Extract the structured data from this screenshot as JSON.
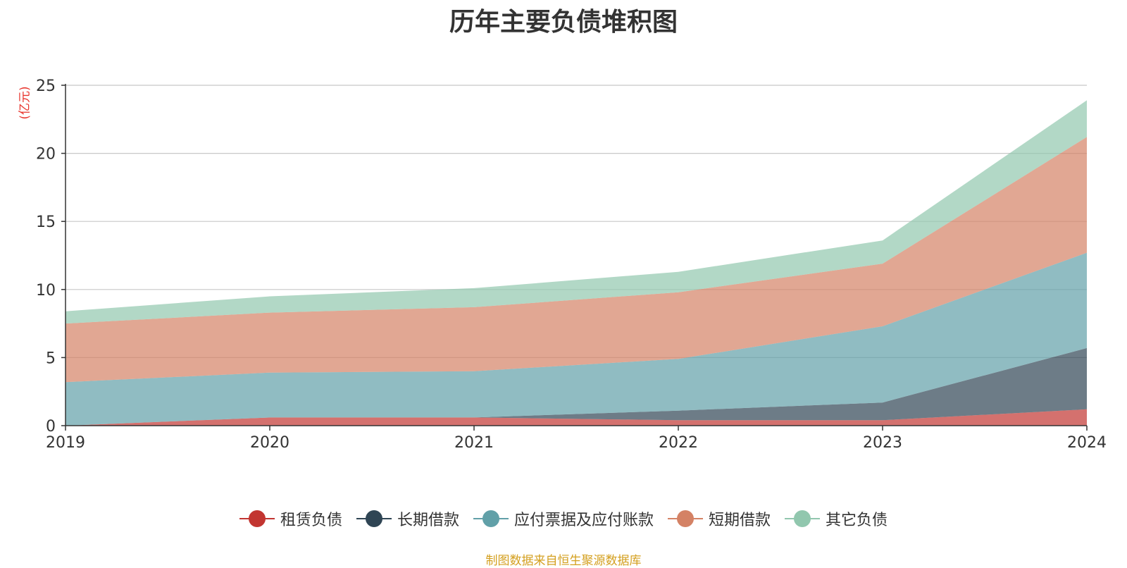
{
  "chart_data": {
    "type": "area",
    "title": "历年主要负债堆积图",
    "ylabel": "(亿元)",
    "xlabel": "",
    "ylim": [
      0,
      25
    ],
    "yticks": [
      0,
      5,
      10,
      15,
      20,
      25
    ],
    "categories": [
      "2019",
      "2020",
      "2021",
      "2022",
      "2023",
      "2024"
    ],
    "stacked": true,
    "grid": true,
    "legend_position": "bottom",
    "series": [
      {
        "name": "租赁负债",
        "color": "#c23531",
        "values": [
          0.0,
          0.6,
          0.6,
          0.4,
          0.4,
          1.2
        ]
      },
      {
        "name": "长期借款",
        "color": "#2f4554",
        "values": [
          0.0,
          0.0,
          0.0,
          0.7,
          1.3,
          4.5
        ]
      },
      {
        "name": "应付票据及应付账款",
        "color": "#61a0a8",
        "values": [
          3.2,
          3.3,
          3.4,
          3.8,
          5.6,
          7.0
        ]
      },
      {
        "name": "短期借款",
        "color": "#d48265",
        "values": [
          4.3,
          4.4,
          4.7,
          4.9,
          4.6,
          8.5
        ]
      },
      {
        "name": "其它负债",
        "color": "#91c7ae",
        "values": [
          0.9,
          1.2,
          1.4,
          1.5,
          1.7,
          2.7
        ]
      }
    ]
  },
  "source_note": "制图数据来自恒生聚源数据库"
}
